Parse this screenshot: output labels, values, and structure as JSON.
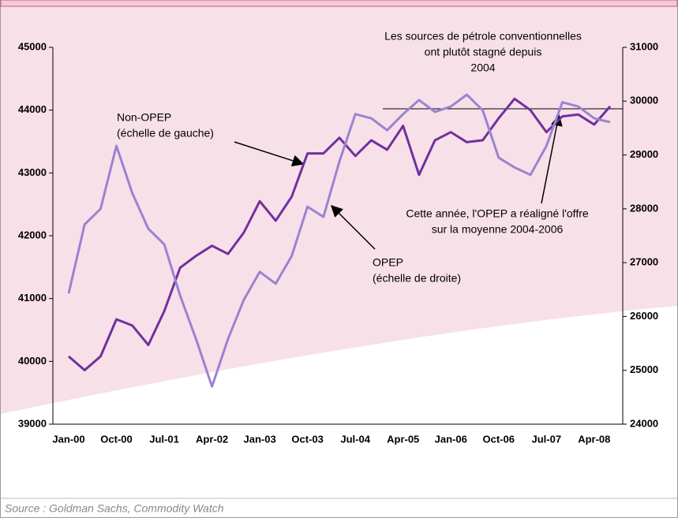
{
  "chart_data": {
    "type": "line",
    "categories": [
      "Jan-00",
      null,
      null,
      "Oct-00",
      null,
      null,
      "Jul-01",
      null,
      null,
      "Apr-02",
      null,
      null,
      "Jan-03",
      null,
      null,
      "Oct-03",
      null,
      null,
      "Jul-04",
      null,
      null,
      "Apr-05",
      null,
      null,
      "Jan-06",
      null,
      null,
      "Oct-06",
      null,
      null,
      "Jul-07",
      null,
      null,
      "Apr-08",
      null
    ],
    "series": [
      {
        "name": "Non-OPEP",
        "color": "#7030a0",
        "axis": "y",
        "values": [
          40080,
          39860,
          40080,
          40670,
          40570,
          40260,
          40800,
          41490,
          41680,
          41840,
          41710,
          42050,
          42550,
          42240,
          42620,
          43310,
          43310,
          43560,
          43270,
          43520,
          43370,
          43750,
          42970,
          43520,
          43650,
          43490,
          43520,
          43870,
          44180,
          44000,
          43650,
          43900,
          43930,
          43770,
          44060
        ]
      },
      {
        "name": "OPEP",
        "color": "#9c82d2",
        "axis": "y2",
        "values": [
          26430,
          27710,
          28000,
          29170,
          28290,
          27630,
          27340,
          26390,
          25580,
          24700,
          25580,
          26310,
          26830,
          26610,
          27120,
          28040,
          27850,
          28880,
          29760,
          29680,
          29460,
          29760,
          30020,
          29800,
          29900,
          30120,
          29830,
          28950,
          28770,
          28630,
          29170,
          29980,
          29900,
          29680,
          29610
        ]
      }
    ],
    "ylim": [
      39000,
      45000
    ],
    "yticks": [
      39000,
      40000,
      41000,
      42000,
      43000,
      44000,
      45000
    ],
    "y2lim": [
      24000,
      31000
    ],
    "y2ticks": [
      24000,
      25000,
      26000,
      27000,
      28000,
      29000,
      30000,
      31000
    ],
    "annotations": [
      [
        "Les sources de pétrole conventionnelles",
        "ont plutôt stagné depuis",
        "2004"
      ],
      [
        "Non-OPEP",
        "(échelle de gauche)"
      ],
      [
        "OPEP",
        "(échelle de droite)"
      ],
      [
        "Cette année, l'OPEP a réaligné l'offre",
        "sur la moyenne 2004-2006"
      ]
    ],
    "source": "Source : Goldman Sachs, Commodity Watch"
  }
}
